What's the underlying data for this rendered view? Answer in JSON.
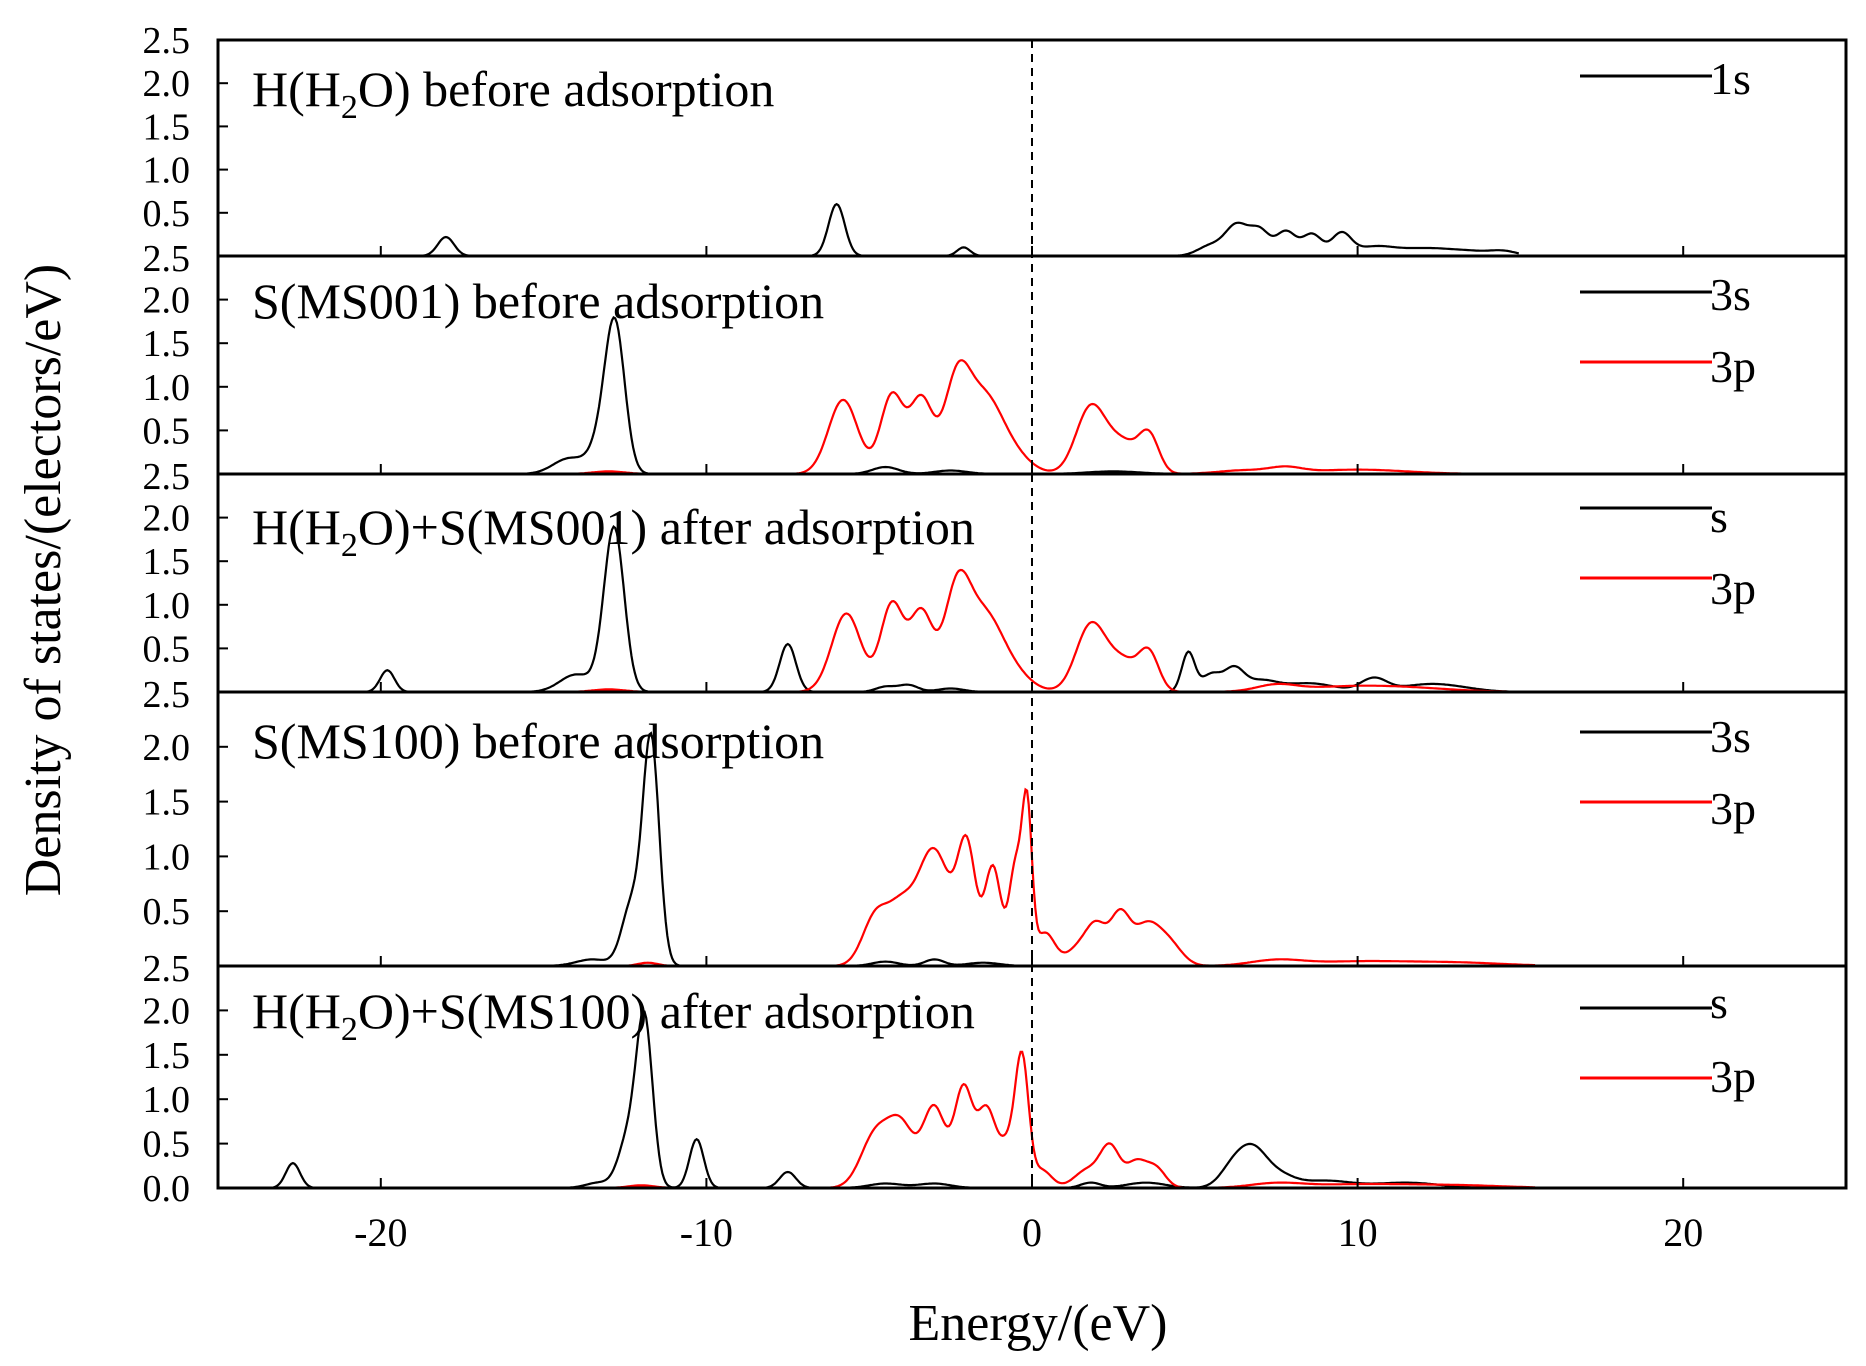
{
  "chart_data": {
    "type": "line",
    "xlabel": "Energy/(eV)",
    "ylabel": "Density of states/(electors/eV)",
    "xlim": [
      -25,
      25
    ],
    "xticks": [
      -20,
      -10,
      0,
      10,
      20
    ],
    "xtick_labels": [
      "-20",
      "-10",
      "0",
      "10",
      "20"
    ],
    "fermi_level": 0,
    "colors": {
      "black": "#000000",
      "red": "#ff0000"
    },
    "panels": [
      {
        "id": "p1",
        "title": "H(H2O) before adsorption",
        "title_main": "H(H",
        "title_sub": "2",
        "title_rest": "O) before adsorption",
        "ylim": [
          0,
          2.5
        ],
        "yticks": [
          2.5,
          2.0,
          1.5,
          1.0,
          0.5
        ],
        "ytick_labels": [
          "2.5",
          "2.0",
          "1.5",
          "1.0",
          "0.5"
        ],
        "series": [
          {
            "name": "1s",
            "color": "#000000",
            "xend": 15,
            "base": 0,
            "peaks": [
              [
                -18,
                0.22,
                0.25
              ],
              [
                -6,
                0.6,
                0.25
              ],
              [
                -2.1,
                0.1,
                0.2
              ],
              [
                5.5,
                0.12,
                0.4
              ],
              [
                6.3,
                0.35,
                0.35
              ],
              [
                7.0,
                0.28,
                0.3
              ],
              [
                7.8,
                0.28,
                0.3
              ],
              [
                8.6,
                0.25,
                0.3
              ],
              [
                9.5,
                0.25,
                0.3
              ],
              [
                10.5,
                0.1,
                0.6
              ],
              [
                12.0,
                0.08,
                0.8
              ],
              [
                13.5,
                0.05,
                0.8
              ],
              [
                14.5,
                0.04,
                0.4
              ]
            ]
          }
        ]
      },
      {
        "id": "p2",
        "title": "S(MS001) before adsorption",
        "ylim": [
          0,
          2.5
        ],
        "yticks": [
          2.5,
          2.0,
          1.5,
          1.0,
          0.5
        ],
        "ytick_labels": [
          "2.5",
          "2.0",
          "1.5",
          "1.0",
          "0.5"
        ],
        "series": [
          {
            "name": "3s",
            "color": "#000000",
            "xend": 16.5,
            "base": 0,
            "peaks": [
              [
                -14.2,
                0.18,
                0.5
              ],
              [
                -13.2,
                0.35,
                0.35
              ],
              [
                -12.8,
                1.6,
                0.3
              ],
              [
                -4.5,
                0.08,
                0.4
              ],
              [
                -2.5,
                0.04,
                0.5
              ],
              [
                2.5,
                0.03,
                0.8
              ]
            ]
          },
          {
            "name": "3p",
            "color": "#ff0000",
            "xend": 16.5,
            "base": 0,
            "peaks": [
              [
                -13.0,
                0.03,
                0.5
              ],
              [
                -5.8,
                0.85,
                0.45
              ],
              [
                -4.3,
                0.9,
                0.35
              ],
              [
                -3.4,
                0.85,
                0.35
              ],
              [
                -2.3,
                1.05,
                0.4
              ],
              [
                -1.5,
                0.7,
                0.5
              ],
              [
                -0.8,
                0.3,
                0.6
              ],
              [
                1.8,
                0.75,
                0.45
              ],
              [
                2.8,
                0.35,
                0.5
              ],
              [
                3.6,
                0.4,
                0.3
              ],
              [
                6.5,
                0.04,
                0.8
              ],
              [
                7.8,
                0.06,
                0.5
              ],
              [
                10.0,
                0.05,
                1.5
              ]
            ]
          }
        ]
      },
      {
        "id": "p3",
        "title": "H(H2O)+S(MS001) after adsorption",
        "title_main": "H(H",
        "title_sub": "2",
        "title_rest": "O)+S(MS001) after adsorption",
        "ylim": [
          0,
          2.5
        ],
        "yticks": [
          2.5,
          2.0,
          1.5,
          1.0,
          0.5
        ],
        "ytick_labels": [
          "2.5",
          "2.0",
          "1.5",
          "1.0",
          "0.5"
        ],
        "series": [
          {
            "name": "s",
            "color": "#000000",
            "xend": 16.0,
            "base": 0,
            "peaks": [
              [
                -19.8,
                0.25,
                0.22
              ],
              [
                -14.0,
                0.2,
                0.5
              ],
              [
                -13.0,
                0.4,
                0.3
              ],
              [
                -12.8,
                1.55,
                0.3
              ],
              [
                -7.5,
                0.55,
                0.25
              ],
              [
                -4.5,
                0.06,
                0.3
              ],
              [
                -3.8,
                0.08,
                0.3
              ],
              [
                -2.5,
                0.04,
                0.4
              ],
              [
                4.8,
                0.45,
                0.2
              ],
              [
                5.5,
                0.2,
                0.3
              ],
              [
                6.2,
                0.25,
                0.3
              ],
              [
                7.0,
                0.12,
                0.5
              ],
              [
                8.5,
                0.1,
                0.8
              ],
              [
                10.5,
                0.15,
                0.4
              ],
              [
                12.0,
                0.07,
                0.8
              ],
              [
                13.0,
                0.04,
                0.8
              ]
            ]
          },
          {
            "name": "3p",
            "color": "#ff0000",
            "xend": 16.0,
            "base": 0,
            "peaks": [
              [
                -13.0,
                0.03,
                0.5
              ],
              [
                -5.7,
                0.9,
                0.45
              ],
              [
                -4.3,
                1.0,
                0.35
              ],
              [
                -3.4,
                0.9,
                0.35
              ],
              [
                -2.3,
                1.15,
                0.4
              ],
              [
                -1.5,
                0.7,
                0.5
              ],
              [
                -0.8,
                0.3,
                0.6
              ],
              [
                1.8,
                0.75,
                0.45
              ],
              [
                2.8,
                0.35,
                0.5
              ],
              [
                3.6,
                0.4,
                0.3
              ],
              [
                7.5,
                0.07,
                0.6
              ],
              [
                9.5,
                0.05,
                1.5
              ],
              [
                11.5,
                0.04,
                1.5
              ]
            ]
          }
        ]
      },
      {
        "id": "p4",
        "title": "S(MS100) before adsorption",
        "ylim": [
          0,
          2.5
        ],
        "yticks": [
          2.5,
          2.0,
          1.5,
          1.0,
          0.5
        ],
        "ytick_labels": [
          "2.5",
          "2.0",
          "1.5",
          "1.0",
          "0.5"
        ],
        "series": [
          {
            "name": "3s",
            "color": "#000000",
            "xend": 15.5,
            "base": 0,
            "peaks": [
              [
                -13.5,
                0.06,
                0.5
              ],
              [
                -12.3,
                0.55,
                0.3
              ],
              [
                -11.7,
                2.05,
                0.25
              ],
              [
                -4.5,
                0.04,
                0.4
              ],
              [
                -3.0,
                0.06,
                0.3
              ],
              [
                -1.5,
                0.03,
                0.5
              ]
            ]
          },
          {
            "name": "3p",
            "color": "#ff0000",
            "xend": 15.5,
            "base": 0,
            "peaks": [
              [
                -11.8,
                0.03,
                0.3
              ],
              [
                -4.8,
                0.45,
                0.4
              ],
              [
                -4.0,
                0.5,
                0.4
              ],
              [
                -3.2,
                0.72,
                0.4
              ],
              [
                -2.7,
                0.55,
                0.4
              ],
              [
                -2.0,
                1.05,
                0.28
              ],
              [
                -1.2,
                0.9,
                0.25
              ],
              [
                -0.5,
                0.9,
                0.2
              ],
              [
                -0.15,
                1.35,
                0.15
              ],
              [
                0.4,
                0.3,
                0.3
              ],
              [
                1.5,
                0.18,
                0.4
              ],
              [
                2.0,
                0.3,
                0.3
              ],
              [
                2.7,
                0.45,
                0.3
              ],
              [
                3.5,
                0.35,
                0.4
              ],
              [
                4.2,
                0.2,
                0.4
              ],
              [
                7.5,
                0.05,
                0.8
              ],
              [
                10.0,
                0.04,
                1.5
              ],
              [
                13.0,
                0.03,
                1.5
              ]
            ]
          }
        ]
      },
      {
        "id": "p5",
        "title": "H(H2O)+S(MS100) after adsorption",
        "title_main": "H(H",
        "title_sub": "2",
        "title_rest": "O)+S(MS100) after adsorption",
        "ylim": [
          0,
          2.5
        ],
        "yticks": [
          2.0,
          1.5,
          1.0,
          0.5,
          0.0
        ],
        "ytick_labels": [
          "2.0",
          "1.5",
          "1.0",
          "0.5",
          "0.0"
        ],
        "series": [
          {
            "name": "s",
            "color": "#000000",
            "xend": 15.5,
            "base": 0,
            "peaks": [
              [
                -22.7,
                0.28,
                0.22
              ],
              [
                -13.3,
                0.06,
                0.4
              ],
              [
                -12.4,
                0.55,
                0.3
              ],
              [
                -11.9,
                1.85,
                0.25
              ],
              [
                -10.3,
                0.55,
                0.22
              ],
              [
                -7.5,
                0.18,
                0.25
              ],
              [
                -4.5,
                0.05,
                0.5
              ],
              [
                -3.0,
                0.05,
                0.5
              ],
              [
                1.8,
                0.06,
                0.3
              ],
              [
                3.5,
                0.06,
                0.6
              ],
              [
                6.2,
                0.25,
                0.4
              ],
              [
                6.8,
                0.35,
                0.4
              ],
              [
                7.5,
                0.15,
                0.5
              ],
              [
                9.0,
                0.08,
                0.8
              ],
              [
                11.5,
                0.06,
                1.0
              ]
            ]
          },
          {
            "name": "3p",
            "color": "#ff0000",
            "xend": 15.5,
            "base": 0,
            "peaks": [
              [
                -12.0,
                0.03,
                0.4
              ],
              [
                -4.8,
                0.6,
                0.45
              ],
              [
                -4.0,
                0.65,
                0.4
              ],
              [
                -3.0,
                0.9,
                0.35
              ],
              [
                -2.1,
                1.1,
                0.28
              ],
              [
                -1.4,
                0.85,
                0.28
              ],
              [
                -0.7,
                0.5,
                0.3
              ],
              [
                -0.3,
                1.3,
                0.2
              ],
              [
                0.3,
                0.2,
                0.3
              ],
              [
                1.7,
                0.2,
                0.4
              ],
              [
                2.4,
                0.45,
                0.3
              ],
              [
                3.2,
                0.28,
                0.3
              ],
              [
                3.8,
                0.22,
                0.3
              ],
              [
                7.5,
                0.05,
                0.8
              ],
              [
                10.0,
                0.04,
                1.5
              ],
              [
                13.0,
                0.03,
                1.5
              ]
            ]
          }
        ]
      }
    ]
  }
}
